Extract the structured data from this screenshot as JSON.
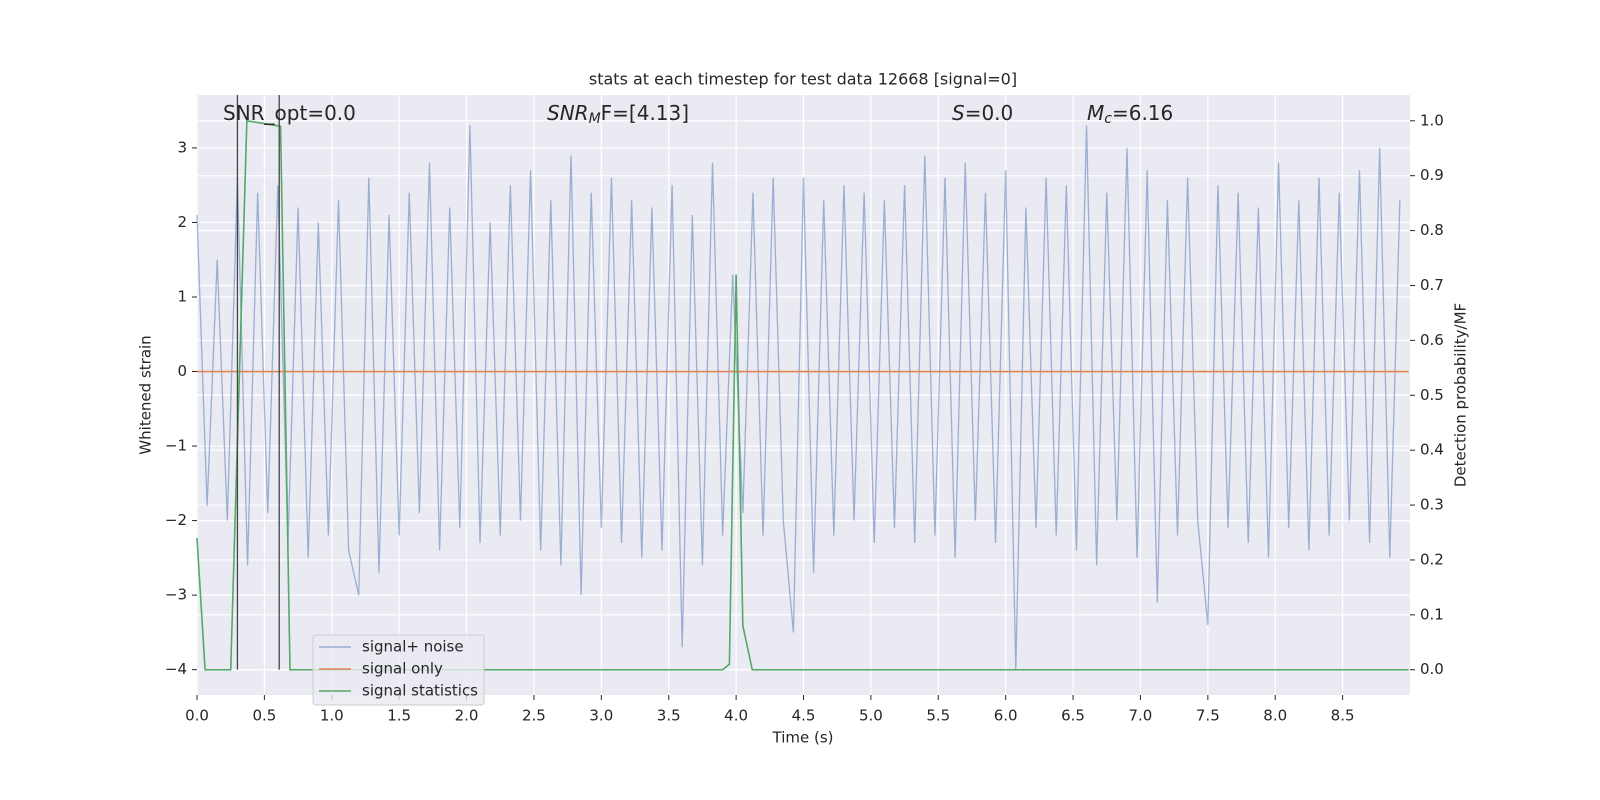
{
  "chart_data": {
    "type": "line",
    "title": "stats at each timestep for test data 12668 [signal=0]",
    "xlabel": "Time (s)",
    "ylabel": "Whitened strain",
    "y2label": "Detection probability/MF",
    "xlim": [
      0,
      9.0
    ],
    "ylim": [
      -4.34,
      3.71
    ],
    "y2lim": [
      -0.046,
      1.047
    ],
    "grid": true,
    "xticks": [
      {
        "value": 0,
        "label": "0.0"
      },
      {
        "value": 0.5,
        "label": "0.5"
      },
      {
        "value": 1,
        "label": "1.0"
      },
      {
        "value": 1.5,
        "label": "1.5"
      },
      {
        "value": 2,
        "label": "2.0"
      },
      {
        "value": 2.5,
        "label": "2.5"
      },
      {
        "value": 3,
        "label": "3.0"
      },
      {
        "value": 3.5,
        "label": "3.5"
      },
      {
        "value": 4,
        "label": "4.0"
      },
      {
        "value": 4.5,
        "label": "4.5"
      },
      {
        "value": 5,
        "label": "5.0"
      },
      {
        "value": 5.5,
        "label": "5.5"
      },
      {
        "value": 6,
        "label": "6.0"
      },
      {
        "value": 6.5,
        "label": "6.5"
      },
      {
        "value": 7,
        "label": "7.0"
      },
      {
        "value": 7.5,
        "label": "7.5"
      },
      {
        "value": 8,
        "label": "8.0"
      },
      {
        "value": 8.5,
        "label": "8.5"
      }
    ],
    "yticks": [
      {
        "value": -4,
        "label": "−4"
      },
      {
        "value": -3,
        "label": "−3"
      },
      {
        "value": -2,
        "label": "−2"
      },
      {
        "value": -1,
        "label": "−1"
      },
      0,
      1,
      2,
      3
    ],
    "y2ticks": [
      {
        "value": 0,
        "label": "0.0"
      },
      {
        "value": 0.1,
        "label": "0.1"
      },
      {
        "value": 0.2,
        "label": "0.2"
      },
      {
        "value": 0.3,
        "label": "0.3"
      },
      {
        "value": 0.4,
        "label": "0.4"
      },
      {
        "value": 0.5,
        "label": "0.5"
      },
      {
        "value": 0.6,
        "label": "0.6"
      },
      {
        "value": 0.7,
        "label": "0.7"
      },
      {
        "value": 0.8,
        "label": "0.8"
      },
      {
        "value": 0.9,
        "label": "0.9"
      },
      {
        "value": 1,
        "label": "1.0"
      }
    ],
    "series": [
      {
        "name": "signal+ noise",
        "color": "#4c72b0",
        "x": [
          0,
          0.075,
          0.15,
          0.225,
          0.3,
          0.375,
          0.45,
          0.525,
          0.6,
          0.675,
          0.75,
          0.825,
          0.9,
          0.975,
          1.05,
          1.125,
          1.2,
          1.275,
          1.35,
          1.425,
          1.5,
          1.575,
          1.65,
          1.725,
          1.8,
          1.875,
          1.95,
          2.025,
          2.1,
          2.175,
          2.25,
          2.325,
          2.4,
          2.475,
          2.55,
          2.625,
          2.7,
          2.775,
          2.85,
          2.925,
          3.0,
          3.075,
          3.15,
          3.225,
          3.3,
          3.375,
          3.45,
          3.525,
          3.6,
          3.675,
          3.75,
          3.825,
          3.9,
          3.975,
          4.05,
          4.125,
          4.2,
          4.275,
          4.35,
          4.425,
          4.5,
          4.575,
          4.65,
          4.725,
          4.8,
          4.875,
          4.95,
          5.025,
          5.1,
          5.175,
          5.25,
          5.325,
          5.4,
          5.475,
          5.55,
          5.625,
          5.7,
          5.775,
          5.85,
          5.925,
          6.0,
          6.075,
          6.15,
          6.225,
          6.3,
          6.375,
          6.45,
          6.525,
          6.6,
          6.675,
          6.75,
          6.825,
          6.9,
          6.975,
          7.05,
          7.125,
          7.2,
          7.275,
          7.35,
          7.425,
          7.5,
          7.575,
          7.65,
          7.725,
          7.8,
          7.875,
          7.95,
          8.025,
          8.1,
          8.175,
          8.25,
          8.325,
          8.4,
          8.475,
          8.55,
          8.625,
          8.7,
          8.775,
          8.85,
          8.925
        ],
        "values": [
          2.1,
          -1.8,
          1.5,
          -2.0,
          2.6,
          -2.6,
          2.4,
          -1.9,
          2.5,
          -2.3,
          2.2,
          -2.5,
          2.0,
          -2.2,
          2.3,
          -2.4,
          -3.0,
          2.6,
          -2.7,
          2.1,
          -2.2,
          2.4,
          -1.9,
          2.8,
          -2.4,
          2.2,
          -2.1,
          3.3,
          -2.3,
          2.0,
          -2.2,
          2.5,
          -2.0,
          2.7,
          -2.4,
          2.3,
          -2.6,
          2.9,
          -3.0,
          2.4,
          -2.1,
          2.6,
          -2.3,
          2.3,
          -2.5,
          2.2,
          -2.4,
          2.5,
          -3.7,
          2.1,
          -2.6,
          2.8,
          -2.2,
          1.3,
          -1.9,
          2.4,
          -2.2,
          2.6,
          -2.0,
          -3.5,
          2.6,
          -2.7,
          2.3,
          -2.2,
          2.5,
          -2.0,
          2.4,
          -2.3,
          2.3,
          -2.1,
          2.5,
          -2.3,
          2.9,
          -2.2,
          2.6,
          -2.5,
          2.8,
          -2.0,
          2.4,
          -2.3,
          2.7,
          -4.0,
          2.2,
          -2.1,
          2.6,
          -2.2,
          2.5,
          -2.4,
          3.3,
          -2.6,
          2.4,
          -2.0,
          3.0,
          -2.5,
          2.7,
          -3.1,
          2.3,
          -2.2,
          2.6,
          -2.0,
          -3.4,
          2.5,
          -2.1,
          2.4,
          -2.3,
          2.2,
          -2.5,
          2.8,
          -2.1,
          2.3,
          -2.4,
          2.6,
          -2.2,
          2.4,
          -2.0,
          2.7,
          -2.3,
          3.0,
          -2.5,
          2.3
        ]
      },
      {
        "name": "signal only",
        "color": "#dd8452",
        "x": [
          0,
          8.99
        ],
        "values": [
          0,
          0
        ]
      },
      {
        "name": "signal statistics",
        "color": "#55a868",
        "axis": "y2",
        "x": [
          0,
          0.06,
          0.25,
          0.37,
          0.62,
          0.69,
          3.9,
          3.95,
          4.0,
          4.05,
          4.12,
          8.99
        ],
        "values": [
          0.24,
          0,
          0,
          1.0,
          0.99,
          0,
          0,
          0.01,
          0.72,
          0.08,
          0,
          0
        ]
      }
    ],
    "vlines": [
      0.3,
      0.61
    ],
    "annotations": [
      {
        "text": "SNR_opt=0.0"
      },
      {
        "base": "SNR",
        "sub": "M",
        "rest": "F=[4.13]"
      },
      {
        "base": "S",
        "rest": "=0.0"
      },
      {
        "base": "M",
        "sub": "c",
        "rest": "=6.16"
      }
    ]
  }
}
